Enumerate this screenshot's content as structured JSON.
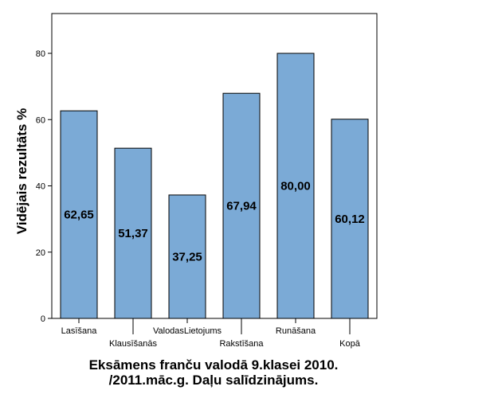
{
  "chart_data": {
    "type": "bar",
    "title_lines": [
      "Eksāmens franču valodā 9.klasei 2010.",
      "/2011.māc.g. Daļu salīdzinājums."
    ],
    "ylabel": "Vidējais rezultāts %",
    "ylim": [
      0,
      90
    ],
    "yticks": [
      0,
      20,
      40,
      60,
      80
    ],
    "categories": [
      "Lasīšana",
      "Klausīšanās",
      "Valodas Lietojums",
      "Rakstīšana",
      "Runāšana",
      "Kopā"
    ],
    "category_labels": [
      "Lasīšana",
      "Klausīšanās",
      "ValodasLietojums",
      "Rakstīšana",
      "Runāšana",
      "Kopā"
    ],
    "values": [
      62.65,
      51.37,
      37.25,
      67.94,
      80.0,
      60.12
    ],
    "value_labels": [
      "62,65",
      "51,37",
      "37,25",
      "67,94",
      "80,00",
      "60,12"
    ],
    "bar_color": "#7BAAD6",
    "bar_edge_color": "#000000",
    "grid": false,
    "legend": "none"
  }
}
